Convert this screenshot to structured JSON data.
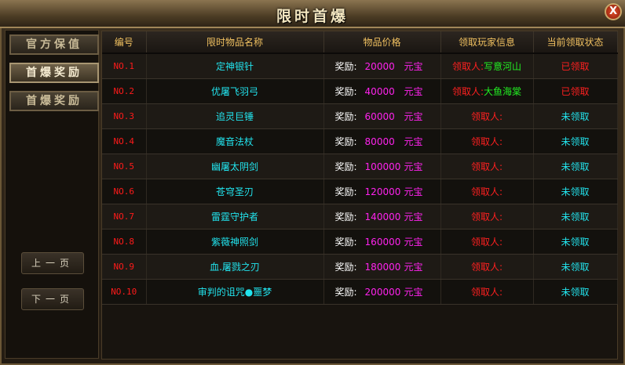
{
  "title": "限时首爆",
  "close_label": "X",
  "sidebar": {
    "items": [
      {
        "label": "官方保值",
        "active": false
      },
      {
        "label": "首爆奖励",
        "active": true
      },
      {
        "label": "首爆奖励",
        "active": false
      }
    ],
    "prev_page": "上一页",
    "next_page": "下一页"
  },
  "table": {
    "headers": [
      "编号",
      "限时物品名称",
      "物品价格",
      "领取玩家信息",
      "当前领取状态"
    ],
    "reward_label": "奖励:",
    "currency": "元宝",
    "receiver_label": "领取人:",
    "rows": [
      {
        "no": "NO.1",
        "name": "定神银针",
        "price": "20000",
        "player": "写意河山",
        "status": "已领取",
        "claimed": true
      },
      {
        "no": "NO.2",
        "name": "优屠飞羽弓",
        "price": "40000",
        "player": "大鱼海棠",
        "status": "已领取",
        "claimed": true
      },
      {
        "no": "NO.3",
        "name": "追灵巨锤",
        "price": "60000",
        "player": "",
        "status": "未领取",
        "claimed": false
      },
      {
        "no": "NO.4",
        "name": "魔音法杖",
        "price": "80000",
        "player": "",
        "status": "未领取",
        "claimed": false
      },
      {
        "no": "NO.5",
        "name": "幽屠太阴剑",
        "price": "100000",
        "player": "",
        "status": "未领取",
        "claimed": false
      },
      {
        "no": "NO.6",
        "name": "苍穹圣刃",
        "price": "120000",
        "player": "",
        "status": "未领取",
        "claimed": false
      },
      {
        "no": "NO.7",
        "name": "雷霆守护者",
        "price": "140000",
        "player": "",
        "status": "未领取",
        "claimed": false
      },
      {
        "no": "NO.8",
        "name": "紫薇神照剑",
        "price": "160000",
        "player": "",
        "status": "未领取",
        "claimed": false
      },
      {
        "no": "NO.9",
        "name": "血.屠戮之刃",
        "price": "180000",
        "player": "",
        "status": "未领取",
        "claimed": false
      },
      {
        "no": "NO.10",
        "name": "审判的诅咒●噩梦",
        "price": "200000",
        "player": "",
        "status": "未领取",
        "claimed": false
      }
    ]
  }
}
